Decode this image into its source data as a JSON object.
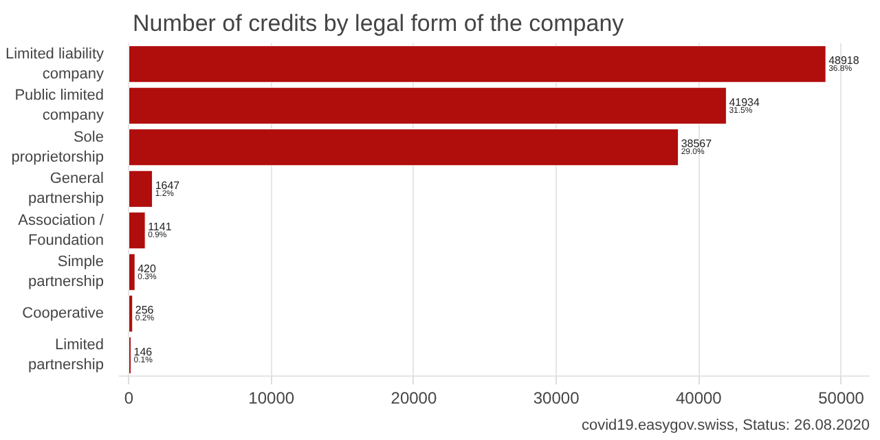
{
  "chart_data": {
    "type": "bar",
    "orientation": "horizontal",
    "title": "Number of credits by legal form of the company",
    "categories": [
      "Limited liability company",
      "Public limited company",
      "Sole proprietorship",
      "General partnership",
      "Association / Foundation",
      "Simple partnership",
      "Cooperative",
      "Limited partnership"
    ],
    "values": [
      48918,
      41934,
      38567,
      1647,
      1141,
      420,
      256,
      146
    ],
    "value_labels": [
      "48918\n36.8%",
      "41934\n31.5%",
      "38567\n29.0%",
      "1647\n1.2%",
      "1141\n0.9%",
      "420\n0.3%",
      "256\n0.2%",
      "146\n0.1%"
    ],
    "color": "#b00d0d",
    "xlim": [
      -700,
      52000
    ],
    "xticks": [
      0,
      10000,
      20000,
      30000,
      40000,
      50000
    ],
    "grid": "x",
    "annotations": [
      "covid19.easygov.swiss, Status: 26.08.2020"
    ]
  }
}
